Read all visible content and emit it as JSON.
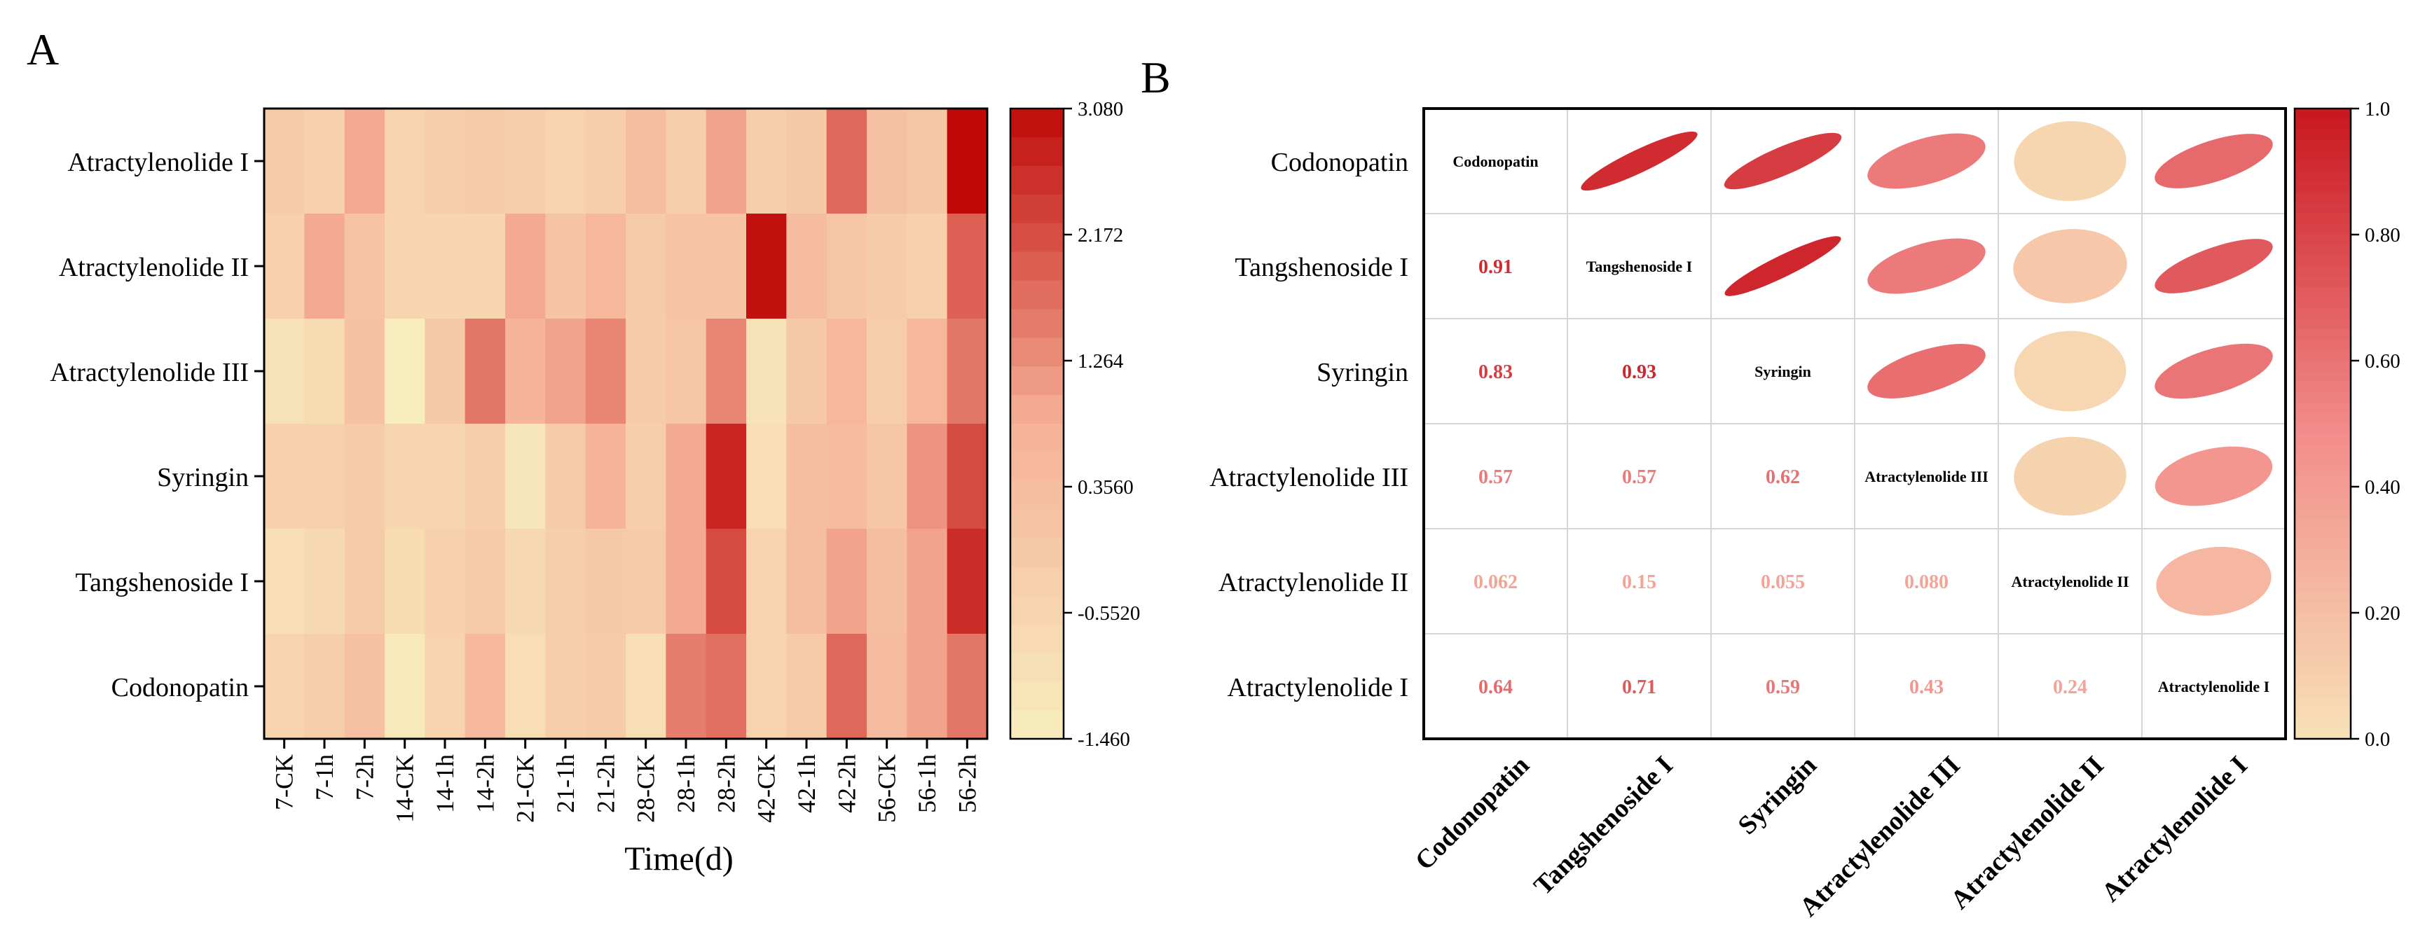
{
  "chart_data": [
    {
      "panel_label": "A",
      "type": "heatmap",
      "xlabel": "Time(d)",
      "columns": [
        "7-CK",
        "7-1h",
        "7-2h",
        "14-CK",
        "14-1h",
        "14-2h",
        "21-CK",
        "21-1h",
        "21-2h",
        "28-CK",
        "28-1h",
        "28-2h",
        "42-CK",
        "42-1h",
        "42-2h",
        "56-CK",
        "56-1h",
        "56-2h"
      ],
      "rows": [
        "Atractylenolide I",
        "Atractylenolide II",
        "Atractylenolide III",
        "Syringin",
        "Tangshenoside I",
        "Codonopatin"
      ],
      "values": [
        [
          -0.2,
          -0.4,
          0.9,
          -0.5,
          -0.3,
          -0.2,
          -0.3,
          -0.5,
          -0.3,
          0.3,
          -0.3,
          1.0,
          -0.3,
          -0.1,
          1.8,
          0.2,
          0.0,
          3.08
        ],
        [
          -0.4,
          0.9,
          0.1,
          -0.6,
          -0.6,
          -0.6,
          0.9,
          0.1,
          0.6,
          -0.2,
          0.1,
          0.1,
          3.0,
          0.4,
          0.0,
          -0.2,
          -0.4,
          1.9
        ],
        [
          -1.0,
          -0.8,
          0.2,
          -1.46,
          -0.1,
          1.6,
          0.7,
          1.0,
          1.4,
          -0.2,
          0.0,
          1.4,
          -1.1,
          -0.1,
          0.6,
          -0.3,
          0.6,
          1.6
        ],
        [
          -0.4,
          -0.4,
          -0.2,
          -0.6,
          -0.6,
          -0.3,
          -1.2,
          -0.2,
          0.7,
          -0.3,
          0.9,
          2.7,
          -0.9,
          0.3,
          0.4,
          0.0,
          1.2,
          2.2
        ],
        [
          -0.9,
          -0.7,
          -0.2,
          -0.8,
          -0.4,
          -0.2,
          -0.7,
          -0.3,
          -0.1,
          -0.2,
          0.9,
          2.2,
          -0.5,
          0.3,
          1.0,
          0.3,
          1.0,
          2.6
        ],
        [
          -0.5,
          -0.3,
          0.2,
          -1.3,
          -0.5,
          0.5,
          -0.9,
          -0.3,
          -0.2,
          -0.9,
          1.5,
          1.7,
          -0.5,
          -0.2,
          1.8,
          0.4,
          1.0,
          1.6
        ]
      ],
      "colorbar": {
        "min": -1.46,
        "max": 3.08,
        "ticks": [
          "3.080",
          "2.172",
          "1.264",
          "0.3560",
          "-0.5520",
          "-1.460"
        ],
        "low_color": "#f7edbd",
        "mid_color": "#f6b198",
        "high_color": "#c00a0a"
      }
    },
    {
      "panel_label": "B",
      "type": "heatmap",
      "subtype": "correlation-matrix",
      "row_labels": [
        "Codonopatin",
        "Tangshenoside I",
        "Syringin",
        "Atractylenolide III",
        "Atractylenolide II",
        "Atractylenolide I"
      ],
      "column_labels": [
        "Codonopatin",
        "Tangshenoside I",
        "Syringin",
        "Atractylenolide III",
        "Atractylenolide II",
        "Atractylenolide I"
      ],
      "pairs": [
        {
          "row": 1,
          "col": 0,
          "value": 0.91,
          "label": "0.91"
        },
        {
          "row": 2,
          "col": 0,
          "value": 0.83,
          "label": "0.83"
        },
        {
          "row": 2,
          "col": 1,
          "value": 0.93,
          "label": "0.93"
        },
        {
          "row": 3,
          "col": 0,
          "value": 0.57,
          "label": "0.57"
        },
        {
          "row": 3,
          "col": 1,
          "value": 0.57,
          "label": "0.57"
        },
        {
          "row": 3,
          "col": 2,
          "value": 0.62,
          "label": "0.62"
        },
        {
          "row": 4,
          "col": 0,
          "value": 0.062,
          "label": "0.062"
        },
        {
          "row": 4,
          "col": 1,
          "value": 0.15,
          "label": "0.15"
        },
        {
          "row": 4,
          "col": 2,
          "value": 0.055,
          "label": "0.055"
        },
        {
          "row": 4,
          "col": 3,
          "value": 0.08,
          "label": "0.080"
        },
        {
          "row": 5,
          "col": 0,
          "value": 0.64,
          "label": "0.64"
        },
        {
          "row": 5,
          "col": 1,
          "value": 0.71,
          "label": "0.71"
        },
        {
          "row": 5,
          "col": 2,
          "value": 0.59,
          "label": "0.59"
        },
        {
          "row": 5,
          "col": 3,
          "value": 0.43,
          "label": "0.43"
        },
        {
          "row": 5,
          "col": 4,
          "value": 0.24,
          "label": "0.24"
        }
      ],
      "colorbar": {
        "min": 0.0,
        "max": 1.0,
        "ticks": [
          "1.0",
          "0.80",
          "0.60",
          "0.40",
          "0.20",
          "0.0"
        ],
        "low_color": "#f7e1b6",
        "mid_color": "#f28a8a",
        "high_color": "#c8161d"
      }
    }
  ]
}
